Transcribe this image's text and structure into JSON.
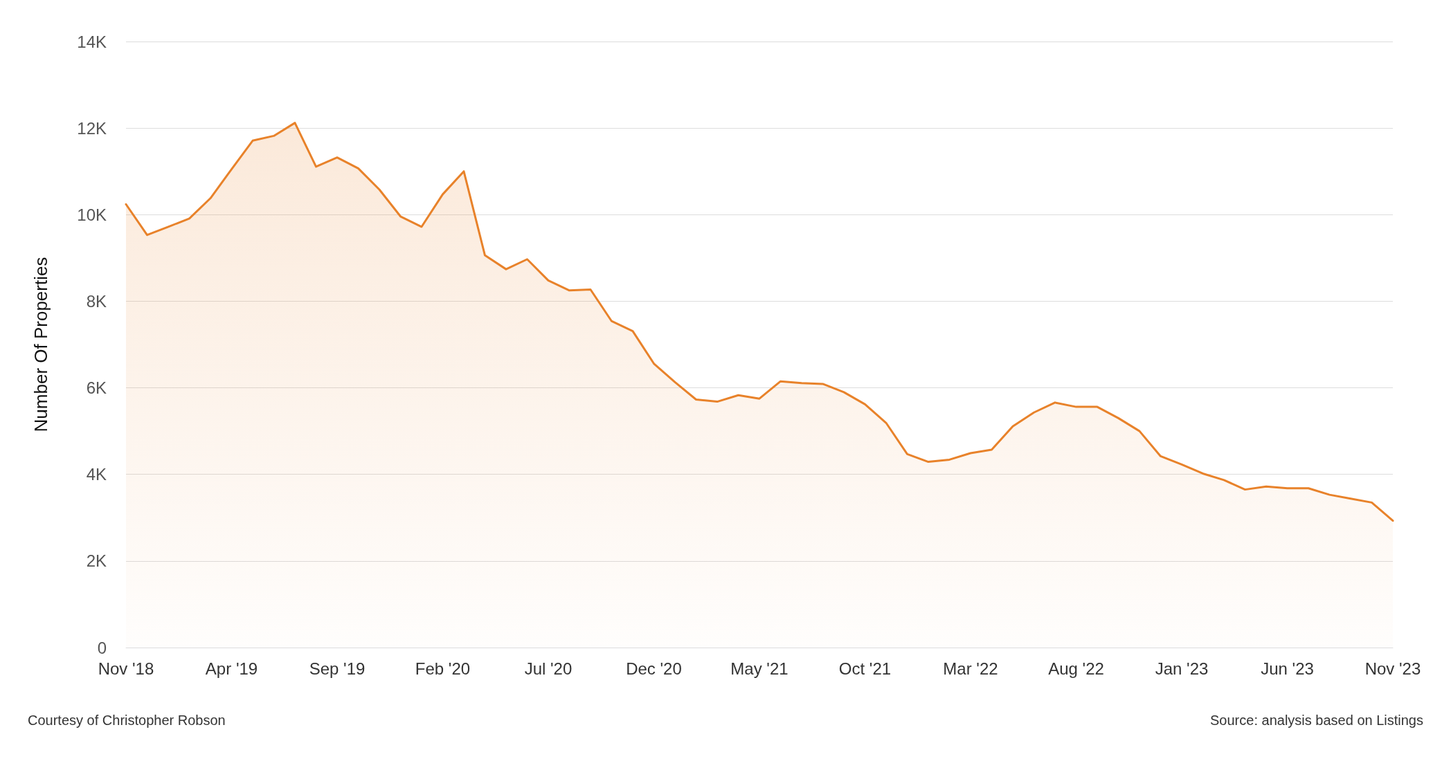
{
  "chart_data": {
    "type": "area",
    "ylabel": "Number Of Properties",
    "categories": [
      "Nov '18",
      null,
      null,
      null,
      null,
      "Apr '19",
      null,
      null,
      null,
      null,
      "Sep '19",
      null,
      null,
      null,
      null,
      "Feb '20",
      null,
      null,
      null,
      null,
      "Jul '20",
      null,
      null,
      null,
      null,
      "Dec '20",
      null,
      null,
      null,
      null,
      "May '21",
      null,
      null,
      null,
      null,
      "Oct '21",
      null,
      null,
      null,
      null,
      "Mar '22",
      null,
      null,
      null,
      null,
      "Aug '22",
      null,
      null,
      null,
      null,
      "Jan '23",
      null,
      null,
      null,
      null,
      "Jun '23",
      null,
      null,
      null,
      null,
      "Nov '23"
    ],
    "series": [
      {
        "color": "#e8822a",
        "values": [
          10240,
          9530,
          9720,
          9910,
          10380,
          11050,
          11710,
          11820,
          12120,
          11110,
          11320,
          11070,
          10580,
          9960,
          9720,
          10470,
          11000,
          9060,
          8740,
          8970,
          8480,
          8250,
          8270,
          7540,
          7310,
          6560,
          6130,
          5730,
          5680,
          5830,
          5750,
          6150,
          6110,
          6090,
          5900,
          5620,
          5190,
          4470,
          4290,
          4340,
          4490,
          4570,
          5110,
          5430,
          5660,
          5560,
          5560,
          5300,
          5000,
          4420,
          4230,
          4020,
          3870,
          3650,
          3720,
          3680,
          3680,
          3530,
          3440,
          3350,
          2930
        ]
      }
    ],
    "ylim": [
      0,
      14000
    ],
    "yticks": [
      0,
      {
        "value": 2000,
        "label": "2K"
      },
      {
        "value": 4000,
        "label": "4K"
      },
      {
        "value": 6000,
        "label": "6K"
      },
      {
        "value": 8000,
        "label": "8K"
      },
      {
        "value": 10000,
        "label": "10K"
      },
      {
        "value": 12000,
        "label": "12K"
      },
      {
        "value": 14000,
        "label": "14K"
      }
    ],
    "grid": "y",
    "marker": "none",
    "line_style": "solid",
    "annotations": [
      "Courtesy of Christopher Robson",
      "Source: analysis based on Listings"
    ]
  }
}
